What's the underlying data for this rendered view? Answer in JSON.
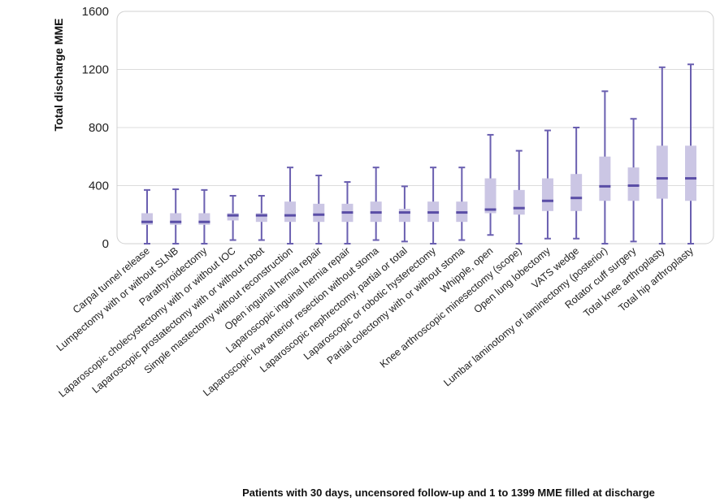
{
  "chart_data": {
    "type": "box",
    "ylabel": "Total discharge MME",
    "xlabel": "Patients with 30 days, uncensored follow-up and 1 to 1399 MME filled at discharge",
    "ylim": [
      0,
      1600
    ],
    "yticks": [
      0,
      400,
      800,
      1200,
      1600
    ],
    "grid": true,
    "colors": {
      "box": "#cbc6e4",
      "whisker": "#6a5fb0",
      "median": "#5a4ea6"
    },
    "categories": [
      "Carpal tunnel release",
      "Lumpectomy with or without SLNB",
      "Parathyroidectomy",
      "Laparoscopic cholecystectomy with or without IOC",
      "Laparoscopic prostatectomy with or without robot",
      "Simple mastectomy without reconstruction",
      "Open inguinal hernia repair",
      "Laparoscopic inguinal hernia repair",
      "Laparoscopic low anterior resection without stoma",
      "Laparoscopic nephrectomy, partial or total",
      "Laparoscopic or robotic hysterectomy",
      "Partial colectomy with or without stoma",
      "Whipple, open",
      "Knee arthroscopic minesectomy (scope)",
      "Open lung lobectomy",
      "VATS wedge",
      "Lumbar laminotomy or laminectomy (posterior)",
      "Rotator cuff surgery",
      "Total knee arthroplasty",
      "Total hip arthroplasty"
    ],
    "boxes": [
      {
        "min": 0,
        "q1": 130,
        "median": 150,
        "q3": 210,
        "max": 370
      },
      {
        "min": 0,
        "q1": 130,
        "median": 150,
        "q3": 210,
        "max": 375
      },
      {
        "min": 0,
        "q1": 130,
        "median": 150,
        "q3": 210,
        "max": 370
      },
      {
        "min": 25,
        "q1": 160,
        "median": 195,
        "q3": 210,
        "max": 330
      },
      {
        "min": 25,
        "q1": 150,
        "median": 195,
        "q3": 210,
        "max": 330
      },
      {
        "min": 0,
        "q1": 150,
        "median": 195,
        "q3": 290,
        "max": 525
      },
      {
        "min": 0,
        "q1": 150,
        "median": 200,
        "q3": 275,
        "max": 470
      },
      {
        "min": 0,
        "q1": 150,
        "median": 215,
        "q3": 275,
        "max": 425
      },
      {
        "min": 25,
        "q1": 150,
        "median": 215,
        "q3": 290,
        "max": 525
      },
      {
        "min": 15,
        "q1": 150,
        "median": 215,
        "q3": 240,
        "max": 395
      },
      {
        "min": 0,
        "q1": 150,
        "median": 215,
        "q3": 290,
        "max": 525
      },
      {
        "min": 25,
        "q1": 150,
        "median": 215,
        "q3": 290,
        "max": 525
      },
      {
        "min": 60,
        "q1": 210,
        "median": 235,
        "q3": 450,
        "max": 750
      },
      {
        "min": 0,
        "q1": 200,
        "median": 245,
        "q3": 370,
        "max": 640
      },
      {
        "min": 35,
        "q1": 225,
        "median": 295,
        "q3": 450,
        "max": 780
      },
      {
        "min": 35,
        "q1": 225,
        "median": 315,
        "q3": 480,
        "max": 800
      },
      {
        "min": 0,
        "q1": 295,
        "median": 395,
        "q3": 600,
        "max": 1050
      },
      {
        "min": 15,
        "q1": 295,
        "median": 400,
        "q3": 525,
        "max": 860
      },
      {
        "min": 0,
        "q1": 310,
        "median": 450,
        "q3": 675,
        "max": 1215
      },
      {
        "min": 0,
        "q1": 295,
        "median": 450,
        "q3": 675,
        "max": 1235
      }
    ]
  }
}
